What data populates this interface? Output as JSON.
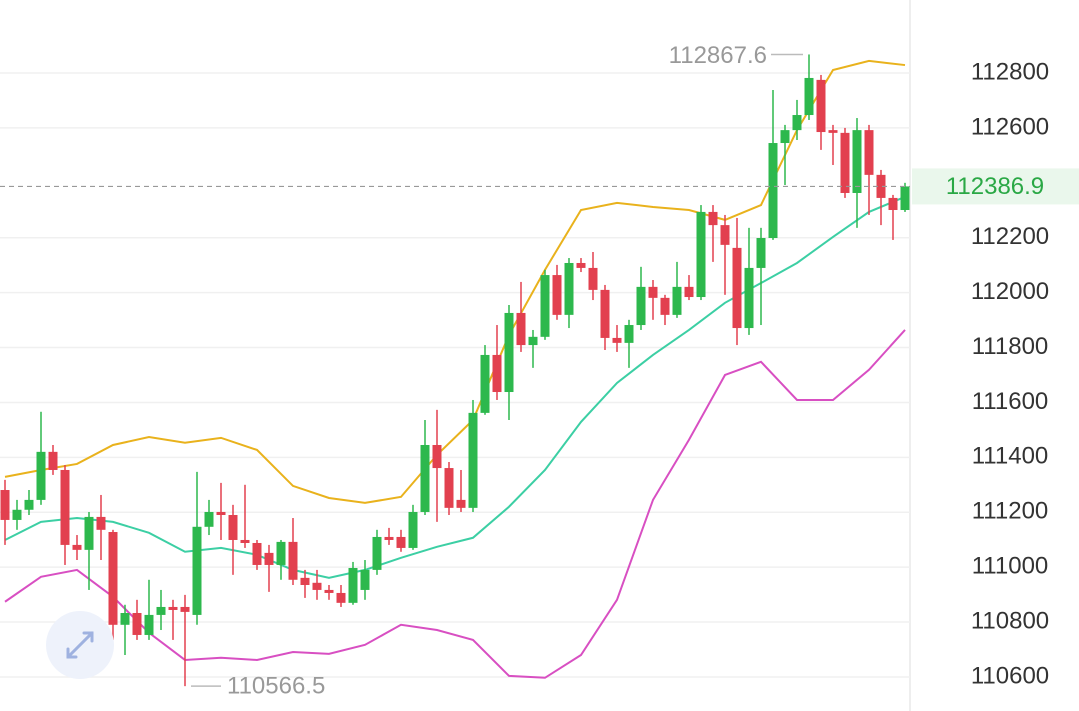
{
  "chart_data": {
    "type": "candlestick",
    "ylim": [
      110476,
      113066
    ],
    "yticks": [
      112800,
      112600,
      112200,
      112000,
      111800,
      111600,
      111400,
      111200,
      111000,
      110800,
      110600
    ],
    "grid": true,
    "up_color": "#2db84d",
    "down_color": "#e2404f",
    "open": [
      111281,
      111172,
      111209,
      111245,
      111420,
      111354,
      111081,
      111063,
      111183,
      111128,
      110790,
      110833,
      110753,
      110826,
      110855,
      110855,
      110826,
      111147,
      111201,
      111190,
      111099,
      111088,
      111052,
      111008,
      111092,
      110961,
      110943,
      110917,
      110906,
      110870,
      110917,
      110990,
      111110,
      111110,
      111070,
      111201,
      111445,
      111361,
      111245,
      111216,
      111562,
      111773,
      111638,
      111926,
      111809,
      111839,
      112064,
      111919,
      112108,
      112090,
      112010,
      111835,
      111817,
      111882,
      112021,
      111981,
      111919,
      112021,
      111984,
      112294,
      112246,
      112163,
      111871,
      112090,
      112199,
      112545,
      112592,
      112647,
      112775,
      112592,
      112582,
      112363,
      112592,
      112429,
      112345,
      112301
    ],
    "high": [
      111318,
      111245,
      111281,
      111566,
      111445,
      111372,
      111117,
      111201,
      111263,
      111136,
      110863,
      110881,
      110954,
      110917,
      110881,
      110899,
      111347,
      111245,
      111307,
      111227,
      111300,
      111099,
      111081,
      111099,
      111179,
      110990,
      110990,
      110935,
      110935,
      111019,
      111026,
      111136,
      111143,
      111136,
      111227,
      111536,
      111573,
      111383,
      111354,
      111609,
      111809,
      111882,
      111955,
      112039,
      111864,
      112083,
      112101,
      112126,
      112126,
      112148,
      112028,
      111882,
      111901,
      112094,
      112046,
      111992,
      112112,
      112064,
      112319,
      112319,
      112283,
      112272,
      112236,
      112236,
      112738,
      112611,
      112702,
      112867.6,
      112793,
      112611,
      112600,
      112636,
      112611,
      112447,
      112356,
      112400
    ],
    "low": [
      111081,
      111136,
      111190,
      111227,
      111336,
      111008,
      111026,
      110917,
      111026,
      110735,
      110680,
      110735,
      110735,
      110771,
      110735,
      110566.5,
      110790,
      111117,
      111099,
      110972,
      111070,
      110990,
      110910,
      110954,
      110935,
      110888,
      110881,
      110881,
      110855,
      110863,
      110881,
      110972,
      111081,
      111056,
      111063,
      111190,
      111165,
      111190,
      111201,
      111201,
      111555,
      111609,
      111536,
      111784,
      111726,
      111828,
      111901,
      111871,
      112075,
      111973,
      111791,
      111784,
      111726,
      111864,
      111901,
      111882,
      111908,
      111973,
      111973,
      112112,
      111992,
      111809,
      111846,
      111882,
      112192,
      112392,
      112556,
      112629,
      112520,
      112465,
      112345,
      112236,
      112283,
      112246,
      112192,
      112294
    ],
    "close": [
      111172,
      111209,
      111245,
      111420,
      111354,
      111081,
      111063,
      111183,
      111136,
      110790,
      110833,
      110753,
      110826,
      110855,
      110844,
      110837,
      111147,
      111201,
      111190,
      111099,
      111088,
      111008,
      111008,
      111092,
      110954,
      110935,
      110917,
      110906,
      110870,
      110997,
      110990,
      111110,
      111099,
      111070,
      111201,
      111445,
      111361,
      111216,
      111216,
      111562,
      111773,
      111638,
      111926,
      111809,
      111839,
      112064,
      111919,
      112108,
      112090,
      112010,
      111835,
      111817,
      111882,
      112021,
      111981,
      111919,
      112021,
      111984,
      112294,
      112246,
      112174,
      111871,
      112090,
      112199,
      112545,
      112592,
      112647,
      112782,
      112585,
      112582,
      112363,
      112592,
      112429,
      112345,
      112301,
      112386.9
    ],
    "band_x": [
      0,
      3,
      6,
      9,
      12,
      15,
      18,
      21,
      24,
      27,
      30,
      33,
      36,
      39,
      42,
      45,
      48,
      51,
      54,
      57,
      60,
      63,
      66,
      69,
      72,
      75
    ],
    "bands": [
      {
        "color": "#e9b21c",
        "values": [
          111329,
          111354,
          111376,
          111445,
          111474,
          111453,
          111471,
          111427,
          111296,
          111252,
          111234,
          111256,
          111409,
          111536,
          111846,
          112083,
          112301,
          112327,
          112312,
          112301,
          112265,
          112319,
          112592,
          112811,
          112844,
          112829
        ]
      },
      {
        "color": "#3ccfa4",
        "values": [
          111099,
          111165,
          111179,
          111165,
          111125,
          111056,
          111070,
          111045,
          110990,
          110961,
          110990,
          111034,
          111074,
          111107,
          111220,
          111354,
          111529,
          111671,
          111773,
          111864,
          111963,
          112035,
          112108,
          112203,
          112294,
          112349
        ]
      },
      {
        "color": "#d84fc2",
        "values": [
          110874,
          110965,
          110990,
          110892,
          110761,
          110662,
          110670,
          110662,
          110691,
          110684,
          110717,
          110790,
          110771,
          110735,
          110604,
          110597,
          110680,
          110881,
          111245,
          111464,
          111700,
          111748,
          111609,
          111609,
          111719,
          111864
        ]
      }
    ]
  }
}
